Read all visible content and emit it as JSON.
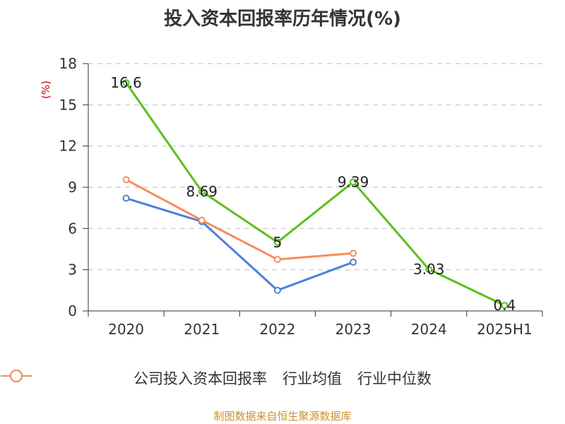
{
  "chart_data": {
    "type": "line",
    "title": "投入资本回报率历年情况(%)",
    "ylabel": "(%)",
    "categories": [
      "2020",
      "2021",
      "2022",
      "2023",
      "2024",
      "2025H1"
    ],
    "ylim": [
      0,
      18
    ],
    "yticks": [
      0,
      3,
      6,
      9,
      12,
      15,
      18
    ],
    "grid": true,
    "legend_position": "bottom",
    "series": [
      {
        "name": "公司投入资本回报率",
        "color": "#5ac01d",
        "values": [
          16.6,
          8.69,
          5,
          9.39,
          3.03,
          0.4
        ],
        "labels": [
          "16.6",
          "8.69",
          "5",
          "9.39",
          "3.03",
          "0.4"
        ]
      },
      {
        "name": "行业均值",
        "color": "#4f7fdb",
        "values": [
          8.2,
          6.5,
          1.5,
          3.55,
          null,
          null
        ]
      },
      {
        "name": "行业中位数",
        "color": "#f98c5a",
        "values": [
          9.55,
          6.6,
          3.75,
          4.2,
          null,
          null
        ]
      }
    ]
  },
  "source": "制图数据来自恒生聚源数据库"
}
